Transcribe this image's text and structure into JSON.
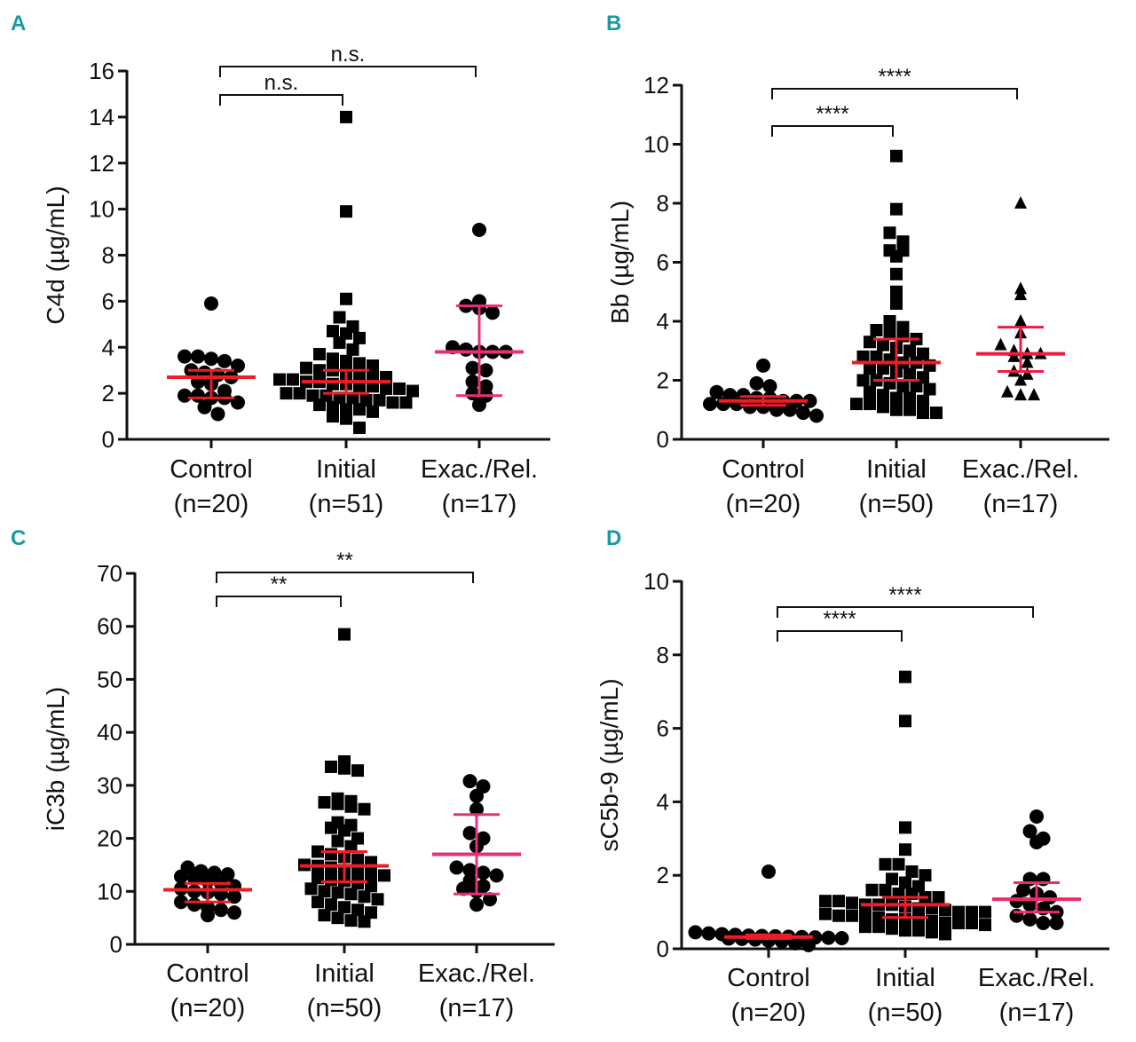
{
  "chart_data": [
    {
      "panel": "A",
      "type": "scatter",
      "ylabel": "C4d (µg/mL)",
      "ylim": [
        0,
        16
      ],
      "yticks": [
        0,
        2,
        4,
        6,
        8,
        10,
        12,
        14,
        16
      ],
      "categories": [
        "Control",
        "Initial",
        "Exac./Rel."
      ],
      "category_n": [
        "(n=20)",
        "(n=51)",
        "(n=17)"
      ],
      "markers": [
        "circle",
        "square",
        "circle"
      ],
      "summary_colors": [
        "#ee1c25",
        "#ee1c25",
        "#e8307a"
      ],
      "median": [
        2.7,
        2.5,
        3.8
      ],
      "iqr": [
        [
          1.8,
          3.0
        ],
        [
          2.0,
          3.0
        ],
        [
          1.9,
          5.8
        ]
      ],
      "values": [
        [
          5.9,
          3.5,
          3.6,
          3.6,
          3.4,
          3.2,
          3.0,
          2.9,
          2.8,
          2.7,
          2.5,
          2.4,
          2.1,
          1.9,
          1.9,
          1.8,
          1.8,
          1.6,
          1.4,
          1.1
        ],
        [
          14.0,
          9.9,
          6.1,
          5.3,
          4.9,
          4.7,
          4.6,
          4.4,
          4.2,
          3.9,
          3.7,
          3.5,
          3.4,
          3.3,
          3.2,
          3.1,
          3.0,
          3.0,
          2.9,
          2.8,
          2.8,
          2.7,
          2.6,
          2.6,
          2.5,
          2.5,
          2.4,
          2.4,
          2.3,
          2.3,
          2.2,
          2.2,
          2.1,
          2.0,
          2.0,
          1.9,
          1.9,
          1.8,
          1.8,
          1.7,
          1.7,
          1.6,
          1.6,
          1.5,
          1.4,
          1.3,
          1.3,
          1.2,
          1.0,
          0.9,
          0.5
        ],
        [
          9.1,
          6.0,
          5.8,
          5.7,
          5.5,
          4.0,
          3.9,
          3.8,
          3.8,
          3.8,
          3.1,
          3.0,
          2.5,
          2.3,
          2.0,
          1.9,
          1.5
        ]
      ],
      "comparisons": [
        {
          "from": 0,
          "to": 1,
          "label": "n.s."
        },
        {
          "from": 0,
          "to": 2,
          "label": "n.s."
        }
      ]
    },
    {
      "panel": "B",
      "type": "scatter",
      "ylabel": "Bb (µg/mL)",
      "ylim": [
        0,
        12
      ],
      "yticks": [
        0,
        2,
        4,
        6,
        8,
        10,
        12
      ],
      "categories": [
        "Control",
        "Initial",
        "Exac./Rel."
      ],
      "category_n": [
        "(n=20)",
        "(n=50)",
        "(n=17)"
      ],
      "markers": [
        "circle",
        "square",
        "triangle"
      ],
      "summary_colors": [
        "#ee1c25",
        "#ee1c25",
        "#ee1c45"
      ],
      "median": [
        1.3,
        2.6,
        2.9
      ],
      "iqr": [
        [
          1.15,
          1.45
        ],
        [
          2.0,
          3.4
        ],
        [
          2.3,
          3.8
        ]
      ],
      "values": [
        [
          2.5,
          1.9,
          1.8,
          1.6,
          1.5,
          1.5,
          1.4,
          1.4,
          1.3,
          1.3,
          1.3,
          1.2,
          1.2,
          1.2,
          1.1,
          1.1,
          1.0,
          1.0,
          0.9,
          0.8
        ],
        [
          9.6,
          7.8,
          7.0,
          6.7,
          6.4,
          6.4,
          6.2,
          5.6,
          5.0,
          4.6,
          4.0,
          3.8,
          3.7,
          3.6,
          3.5,
          3.4,
          3.3,
          3.2,
          3.1,
          3.0,
          2.9,
          2.8,
          2.8,
          2.7,
          2.6,
          2.6,
          2.5,
          2.4,
          2.4,
          2.3,
          2.2,
          2.1,
          2.0,
          2.0,
          1.9,
          1.8,
          1.8,
          1.7,
          1.6,
          1.5,
          1.4,
          1.4,
          1.3,
          1.2,
          1.2,
          1.1,
          1.0,
          1.0,
          0.9,
          0.9
        ],
        [
          8.0,
          5.1,
          4.9,
          4.0,
          3.6,
          3.2,
          3.0,
          2.9,
          2.9,
          2.8,
          2.6,
          2.3,
          2.2,
          2.0,
          1.6,
          1.5,
          1.5
        ]
      ],
      "comparisons": [
        {
          "from": 0,
          "to": 1,
          "label": "****"
        },
        {
          "from": 0,
          "to": 2,
          "label": "****"
        }
      ]
    },
    {
      "panel": "C",
      "type": "scatter",
      "ylabel": "iC3b (µg/mL)",
      "ylim": [
        0,
        70
      ],
      "yticks": [
        0,
        10,
        20,
        30,
        40,
        50,
        60,
        70
      ],
      "categories": [
        "Control",
        "Initial",
        "Exac./Rel."
      ],
      "category_n": [
        "(n=20)",
        "(n=50)",
        "(n=17)"
      ],
      "markers": [
        "circle",
        "square",
        "circle"
      ],
      "summary_colors": [
        "#ee1c25",
        "#ee1c25",
        "#e8307a"
      ],
      "median": [
        10.3,
        14.8,
        17.0
      ],
      "iqr": [
        [
          8.0,
          11.5
        ],
        [
          11.8,
          17.5
        ],
        [
          9.5,
          24.5
        ]
      ],
      "values": [
        [
          14.5,
          13.8,
          13.5,
          13.2,
          12.8,
          12.5,
          12.0,
          11.5,
          11.0,
          10.5,
          10.0,
          9.8,
          9.5,
          9.0,
          8.0,
          7.5,
          7.0,
          6.5,
          6.0,
          5.5
        ],
        [
          58.5,
          34.5,
          33.5,
          33.2,
          32.8,
          27.5,
          27.0,
          26.8,
          26.5,
          26.0,
          25.5,
          23.0,
          22.5,
          22.0,
          21.5,
          20.0,
          19.5,
          18.5,
          17.5,
          17.0,
          16.5,
          16.0,
          15.5,
          15.0,
          14.8,
          14.5,
          14.0,
          13.5,
          13.2,
          13.0,
          12.5,
          12.2,
          12.0,
          11.5,
          11.0,
          10.5,
          10.0,
          9.8,
          9.5,
          9.0,
          8.5,
          8.0,
          7.5,
          7.0,
          6.5,
          6.0,
          5.5,
          5.0,
          4.5,
          4.3
        ],
        [
          30.8,
          29.8,
          28.0,
          25.5,
          21.0,
          20.0,
          18.5,
          14.5,
          14.0,
          13.5,
          13.0,
          12.0,
          11.0,
          10.5,
          10.0,
          8.5,
          7.5
        ]
      ],
      "comparisons": [
        {
          "from": 0,
          "to": 1,
          "label": "**"
        },
        {
          "from": 0,
          "to": 2,
          "label": "**"
        }
      ]
    },
    {
      "panel": "D",
      "type": "scatter",
      "ylabel": "sC5b-9 (µg/mL)",
      "ylim": [
        0,
        10
      ],
      "yticks": [
        0,
        2,
        4,
        6,
        8,
        10
      ],
      "categories": [
        "Control",
        "Initial",
        "Exac./Rel."
      ],
      "category_n": [
        "(n=20)",
        "(n=50)",
        "(n=17)"
      ],
      "markers": [
        "circle",
        "square",
        "circle"
      ],
      "summary_colors": [
        "#ee1c25",
        "#ee1c25",
        "#ee2a6a"
      ],
      "median": [
        0.32,
        1.2,
        1.35
      ],
      "iqr": [
        [
          0.28,
          0.38
        ],
        [
          0.85,
          1.4
        ],
        [
          1.0,
          1.8
        ]
      ],
      "values": [
        [
          2.1,
          0.45,
          0.42,
          0.4,
          0.38,
          0.36,
          0.35,
          0.34,
          0.33,
          0.32,
          0.31,
          0.3,
          0.29,
          0.28,
          0.27,
          0.25,
          0.22,
          0.2,
          0.15,
          0.1
        ],
        [
          7.4,
          6.2,
          3.3,
          2.7,
          2.3,
          2.3,
          2.1,
          2.0,
          1.9,
          1.8,
          1.7,
          1.6,
          1.6,
          1.5,
          1.5,
          1.4,
          1.4,
          1.3,
          1.3,
          1.25,
          1.2,
          1.2,
          1.2,
          1.15,
          1.1,
          1.1,
          1.05,
          1.0,
          1.0,
          1.0,
          0.95,
          0.9,
          0.9,
          0.9,
          0.85,
          0.8,
          0.8,
          0.8,
          0.75,
          0.7,
          0.7,
          0.7,
          0.65,
          0.6,
          0.6,
          0.55,
          0.5,
          0.5,
          0.45,
          0.4
        ],
        [
          3.6,
          3.2,
          3.0,
          2.9,
          1.9,
          1.9,
          1.6,
          1.5,
          1.4,
          1.3,
          1.2,
          1.1,
          1.0,
          0.9,
          0.8,
          0.7,
          0.7
        ]
      ],
      "comparisons": [
        {
          "from": 0,
          "to": 1,
          "label": "****"
        },
        {
          "from": 0,
          "to": 2,
          "label": "****"
        }
      ]
    }
  ]
}
